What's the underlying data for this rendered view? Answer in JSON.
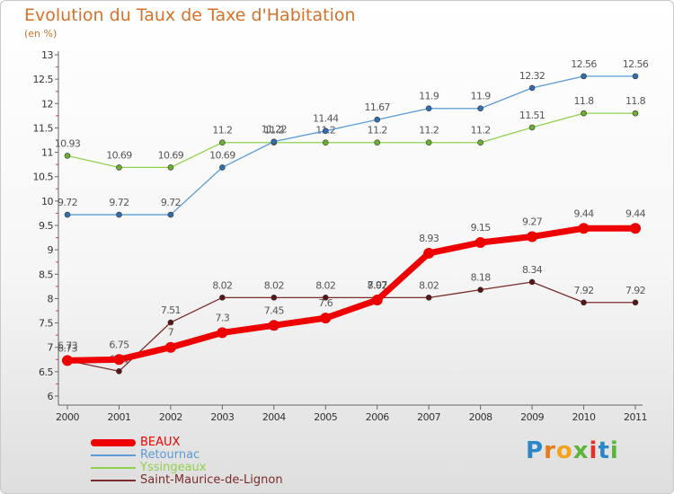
{
  "title": "Evolution du Taux de Taxe d'Habitation",
  "subtitle": "(en %)",
  "logo": {
    "letters": [
      "P",
      "r",
      "o",
      "x",
      "i",
      "t",
      "i"
    ],
    "colors": [
      "#2a87c9",
      "#e77b1a",
      "#f2a51c",
      "#5cb53a",
      "#e0322a",
      "#2a87c9",
      "#5cb53a"
    ]
  },
  "chart_data": {
    "type": "line",
    "x": [
      "2000",
      "2001",
      "2002",
      "2003",
      "2004",
      "2005",
      "2006",
      "2007",
      "2008",
      "2009",
      "2010",
      "2011"
    ],
    "ylim": [
      6,
      13
    ],
    "yticks": [
      "6",
      "6.5",
      "7",
      "7.5",
      "8",
      "8.5",
      "9",
      "9.5",
      "10",
      "10.5",
      "11",
      "11.5",
      "12",
      "12.5",
      "13"
    ],
    "grid": false,
    "legend_position": "bottom-left",
    "series": [
      {
        "name": "BEAUX",
        "color": "#ee0000",
        "values": [
          6.73,
          6.75,
          7,
          7.3,
          7.45,
          7.6,
          7.97,
          8.93,
          9.15,
          9.27,
          9.44,
          9.44
        ],
        "labels": [
          "6.73",
          "6.75",
          "7",
          "7.3",
          "7.45",
          "7.6",
          "7.97",
          "8.93",
          "9.15",
          "9.27",
          "9.44",
          "9.44"
        ]
      },
      {
        "name": "Retournac",
        "color": "#5b9bd5",
        "values": [
          9.72,
          9.72,
          9.72,
          10.69,
          11.22,
          11.44,
          11.67,
          11.9,
          11.9,
          12.32,
          12.56,
          12.56
        ],
        "labels": [
          "9.72",
          "9.72",
          "9.72",
          "10.69",
          "11.22",
          "11.44",
          "11.67",
          "11.9",
          "11.9",
          "12.32",
          "12.56",
          "12.56"
        ]
      },
      {
        "name": "Yssingeaux",
        "color": "#8fd14f",
        "values": [
          10.93,
          10.69,
          10.69,
          11.2,
          11.2,
          11.2,
          11.2,
          11.2,
          11.2,
          11.51,
          11.8,
          11.8
        ],
        "labels": [
          "10.93",
          "10.69",
          "10.69",
          "11.2",
          "11.2",
          "11.2",
          "11.2",
          "11.2",
          "11.2",
          "11.51",
          "11.8",
          "11.8"
        ]
      },
      {
        "name": "Saint-Maurice-de-Lignon",
        "color": "#7b2b2b",
        "values": [
          6.73,
          6.51,
          7.51,
          8.02,
          8.02,
          8.02,
          8.02,
          8.02,
          8.18,
          8.34,
          7.92,
          7.92
        ],
        "labels": [
          "6.73",
          "6.51",
          "7.51",
          "8.02",
          "8.02",
          "8.02",
          "8.02",
          "8.02",
          "8.18",
          "8.34",
          "7.92",
          "7.92"
        ]
      }
    ]
  }
}
